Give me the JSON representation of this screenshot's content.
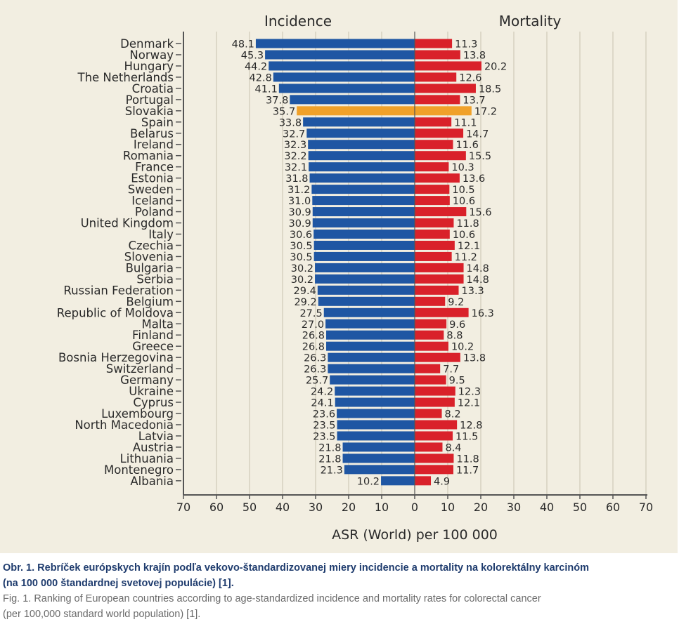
{
  "chart_data": {
    "type": "bar",
    "orientation": "horizontal-diverging",
    "left_panel_title": "Incidence",
    "right_panel_title": "Mortality",
    "xlabel": "ASR (World) per 100 000",
    "xlim_left": [
      70,
      0
    ],
    "xlim_right": [
      0,
      70
    ],
    "x_ticks_left": [
      "70",
      "60",
      "50",
      "40",
      "30",
      "20",
      "10",
      "0"
    ],
    "x_ticks_right": [
      "10",
      "20",
      "30",
      "40",
      "50",
      "60",
      "70"
    ],
    "grid": true,
    "colors": {
      "incidence": "#1f56a3",
      "mortality": "#d9212a",
      "highlight": "#f0a12a",
      "background": "#f2eee1"
    },
    "highlight_category": "Slovakia",
    "categories": [
      "Denmark",
      "Norway",
      "Hungary",
      "The Netherlands",
      "Croatia",
      "Portugal",
      "Slovakia",
      "Spain",
      "Belarus",
      "Ireland",
      "Romania",
      "France",
      "Estonia",
      "Sweden",
      "Iceland",
      "Poland",
      "United Kingdom",
      "Italy",
      "Czechia",
      "Slovenia",
      "Bulgaria",
      "Serbia",
      "Russian Federation",
      "Belgium",
      "Republic of Moldova",
      "Malta",
      "Finland",
      "Greece",
      "Bosnia Herzegovina",
      "Switzerland",
      "Germany",
      "Ukraine",
      "Cyprus",
      "Luxembourg",
      "North Macedonia",
      "Latvia",
      "Austria",
      "Lithuania",
      "Montenegro",
      "Albania"
    ],
    "series": [
      {
        "name": "Incidence",
        "values": [
          48.1,
          45.3,
          44.2,
          42.8,
          41.1,
          37.8,
          35.7,
          33.8,
          32.7,
          32.3,
          32.2,
          32.1,
          31.8,
          31.2,
          31.0,
          30.9,
          30.9,
          30.6,
          30.5,
          30.5,
          30.2,
          30.2,
          29.4,
          29.2,
          27.5,
          27.0,
          26.8,
          26.8,
          26.3,
          26.3,
          25.7,
          24.2,
          24.1,
          23.6,
          23.5,
          23.5,
          21.8,
          21.8,
          21.3,
          10.2
        ]
      },
      {
        "name": "Mortality",
        "values": [
          11.3,
          13.8,
          20.2,
          12.6,
          18.5,
          13.7,
          17.2,
          11.1,
          14.7,
          11.6,
          15.5,
          10.3,
          13.6,
          10.5,
          10.6,
          15.6,
          11.8,
          10.6,
          12.1,
          11.2,
          14.8,
          14.8,
          13.3,
          9.2,
          16.3,
          9.6,
          8.8,
          10.2,
          13.8,
          7.7,
          9.5,
          12.3,
          12.1,
          8.2,
          12.8,
          11.5,
          8.4,
          11.8,
          11.7,
          4.9
        ]
      }
    ],
    "value_labels_incidence": [
      "48.1",
      "45.3",
      "44.2",
      "42.8",
      "41.1",
      "37.8",
      "35.7",
      "33.8",
      "32.7",
      "32.3",
      "32.2",
      "32.1",
      "31.8",
      "31.2",
      "31.0",
      "30.9",
      "30.9",
      "30.6",
      "30.5",
      "30.5",
      "30.2",
      "30.2",
      "29.4",
      "29.2",
      "27.5",
      "27.0",
      "26.8",
      "26.8",
      "26.3",
      "26.3",
      "25.7",
      "24.2",
      "24.1",
      "23.6",
      "23.5",
      "23.5",
      "21.8",
      "21.8",
      "21.3",
      "10.2"
    ],
    "value_labels_mortality": [
      "11.3",
      "13.8",
      "20.2",
      "12.6",
      "18.5",
      "13.7",
      "17.2",
      "11.1",
      "14.7",
      "11.6",
      "15.5",
      "10.3",
      "13.6",
      "10.5",
      "10.6",
      "15.6",
      "11.8",
      "10.6",
      "12.1",
      "11.2",
      "14.8",
      "14.8",
      "13.3",
      "9.2",
      "16.3",
      "9.6",
      "8.8",
      "10.2",
      "13.8",
      "7.7",
      "9.5",
      "12.3",
      "12.1",
      "8.2",
      "12.8",
      "11.5",
      "8.4",
      "11.8",
      "11.7",
      "4.9"
    ]
  },
  "caption": {
    "slovak_line1": "Obr. 1. Rebríček európskych krajín podľa vekovo-štandardizovanej miery incidencie a mortality na kolorektálny karcinóm",
    "slovak_line2": "(na 100 000 štandardnej svetovej populácie) [1].",
    "english_line1": "Fig. 1. Ranking of European countries according to age-standardized incidence and mortality rates for colorectal cancer",
    "english_line2": "(per 100,000 standard world population) [1]."
  }
}
